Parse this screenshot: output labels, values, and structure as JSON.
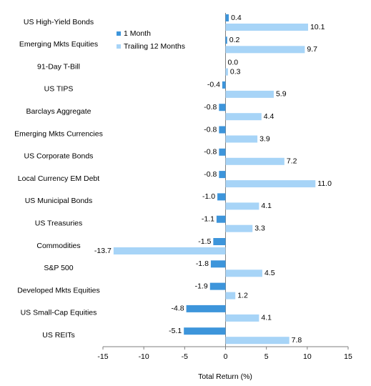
{
  "chart_data": {
    "type": "bar",
    "orientation": "horizontal",
    "x_label": "Total Return (%)",
    "categories": [
      "US High-Yield Bonds",
      "Emerging Mkts Equities",
      "91-Day T-Bill",
      "US TIPS",
      "Barclays Aggregate",
      "Emerging Mkts Currencies",
      "US Corporate Bonds",
      "Local Currency EM Debt",
      "US Municipal Bonds",
      "US Treasuries",
      "Commodities",
      "S&P 500",
      "Developed Mkts Equities",
      "US Small-Cap Equities",
      "US REITs"
    ],
    "series": [
      {
        "name": "1 Month",
        "color": "#3d95db",
        "values": [
          0.4,
          0.2,
          0.0,
          -0.4,
          -0.8,
          -0.8,
          -0.8,
          -0.8,
          -1.0,
          -1.1,
          -1.5,
          -1.8,
          -1.9,
          -4.8,
          -5.1
        ],
        "value_labels": [
          "0.4",
          "0.2",
          "0.0",
          "-0.4",
          "-0.8",
          "-0.8",
          "-0.8",
          "-0.8",
          "-1.0",
          "-1.1",
          "-1.5",
          "-1.8",
          "-1.9",
          "-4.8",
          "-5.1"
        ]
      },
      {
        "name": "Trailing 12 Months",
        "color": "#a7d4f7",
        "values": [
          10.1,
          9.7,
          0.3,
          5.9,
          4.4,
          3.9,
          7.2,
          11.0,
          4.1,
          3.3,
          -13.7,
          4.5,
          1.2,
          4.1,
          7.8
        ],
        "value_labels": [
          "10.1",
          "9.7",
          "0.3",
          "5.9",
          "4.4",
          "3.9",
          "7.2",
          "11.0",
          "4.1",
          "3.3",
          "-13.7",
          "4.5",
          "1.2",
          "4.1",
          "7.8"
        ]
      }
    ],
    "xlim": [
      -15,
      15
    ],
    "xticks": [
      -15,
      -10,
      -5,
      0,
      5,
      10,
      15
    ],
    "legend": "upper-left",
    "grid": false
  }
}
